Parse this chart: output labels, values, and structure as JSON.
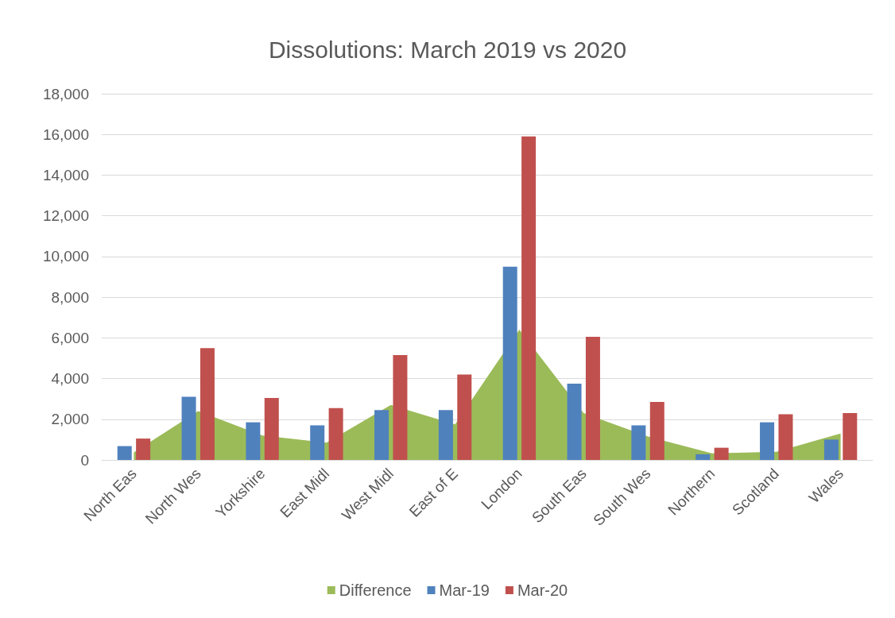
{
  "chart_data": {
    "type": "bar",
    "title": "Dissolutions: March 2019 vs 2020",
    "categories": [
      "North Eas",
      "North Wes",
      "Yorkshire",
      "East Midl",
      "West Midl",
      "East of E",
      "London",
      "South Eas",
      "South Wes",
      "Northern",
      "Scotland",
      "Wales"
    ],
    "series": [
      {
        "name": "Difference",
        "type": "area",
        "color": "#9bbb59",
        "values": [
          370,
          2400,
          1200,
          850,
          2700,
          1750,
          6400,
          2300,
          1150,
          320,
          400,
          1300
        ]
      },
      {
        "name": "Mar-19",
        "color": "#4f81bd",
        "values": [
          680,
          3100,
          1850,
          1700,
          2450,
          2450,
          9500,
          3750,
          1700,
          280,
          1850,
          1000
        ]
      },
      {
        "name": "Mar-20",
        "color": "#c0504d",
        "values": [
          1050,
          5500,
          3050,
          2550,
          5150,
          4200,
          15900,
          6050,
          2850,
          600,
          2250,
          2300
        ]
      }
    ],
    "ylim": [
      0,
      18000
    ],
    "yticks": [
      {
        "value": 0,
        "label": "0"
      },
      {
        "value": 2000,
        "label": "2,000"
      },
      {
        "value": 4000,
        "label": "4,000"
      },
      {
        "value": 6000,
        "label": "6,000"
      },
      {
        "value": 8000,
        "label": "8,000"
      },
      {
        "value": 10000,
        "label": "10,000"
      },
      {
        "value": 12000,
        "label": "12,000"
      },
      {
        "value": 14000,
        "label": "14,000"
      },
      {
        "value": 16000,
        "label": "16,000"
      },
      {
        "value": 18000,
        "label": "18,000"
      }
    ],
    "grid": "y",
    "legend": "bottom"
  }
}
